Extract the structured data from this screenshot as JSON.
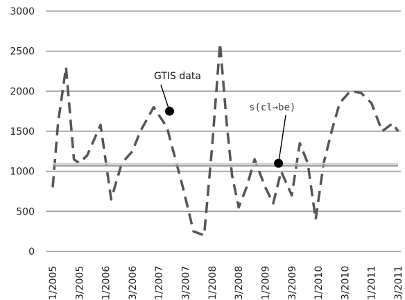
{
  "chart_data": {
    "type": "line",
    "ylim": [
      0,
      3000
    ],
    "yticks": [
      0,
      500,
      1000,
      1500,
      2000,
      2500,
      3000
    ],
    "categories": [
      "1/2005",
      "3/2005",
      "1/2006",
      "3/2006",
      "1/2007",
      "3/2007",
      "1/2008",
      "3/2008",
      "1/2009",
      "3/2009",
      "1/2010",
      "3/2010",
      "1/2011",
      "3/2011"
    ],
    "grid": true,
    "series": [
      {
        "style": "dashed",
        "color": "#555555",
        "x": [
          0,
          0.2,
          0.5,
          0.8,
          1.0,
          1.3,
          1.8,
          2.2,
          2.6,
          3.0,
          3.3,
          3.8,
          4.3,
          4.5,
          4.9,
          5.3,
          5.7,
          6.0,
          6.3,
          6.55,
          6.75,
          7.0,
          7.3,
          7.6,
          8.0,
          8.3,
          8.6,
          9.0,
          9.3,
          9.6,
          9.9,
          10.2,
          10.5,
          10.8,
          11.2,
          11.6,
          12.0,
          12.4,
          12.8,
          13.0
        ],
        "y": [
          800,
          1600,
          2300,
          1150,
          1100,
          1200,
          1580,
          650,
          1100,
          1250,
          1500,
          1800,
          1550,
          1300,
          800,
          250,
          200,
          1300,
          2600,
          1600,
          950,
          550,
          800,
          1150,
          800,
          600,
          1000,
          700,
          1350,
          1100,
          400,
          1100,
          1500,
          1850,
          2000,
          1980,
          1850,
          1500,
          1600,
          1500
        ],
        "label": "GTIS data"
      },
      {
        "style": "solid",
        "color": "#999999",
        "x": [
          0,
          13
        ],
        "y": [
          1070,
          1070
        ]
      },
      {
        "style": "solid",
        "color": "#d0d0d0",
        "x": [
          0,
          13
        ],
        "y": [
          1095,
          1095
        ]
      }
    ],
    "annotations": [
      {
        "text": "GTIS data",
        "target_x": 4.4,
        "target_y": 1750
      },
      {
        "text": "s(cl→be)",
        "target_x": 8.5,
        "target_y": 1100
      }
    ]
  }
}
